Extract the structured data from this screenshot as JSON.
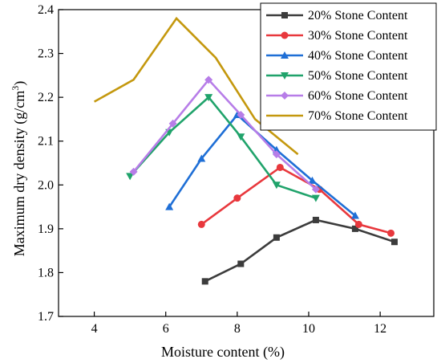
{
  "chart_data": {
    "type": "line",
    "xlabel": "Moisture content (%)",
    "ylabel_main": "Maximum dry density (g/cm",
    "ylabel_sup": "3",
    "ylabel_close": ")",
    "xlim": [
      3,
      13.5
    ],
    "ylim": [
      1.7,
      2.4
    ],
    "xticks": [
      4,
      6,
      8,
      10,
      12
    ],
    "yticks": [
      1.7,
      1.8,
      1.9,
      2.0,
      2.1,
      2.2,
      2.3,
      2.4
    ],
    "ytick_labels": [
      "1.7",
      "1.8",
      "1.9",
      "2.0",
      "2.1",
      "2.2",
      "2.3",
      "2.4"
    ],
    "grid": false,
    "legend_position": "top-right",
    "series": [
      {
        "name": "20% Stone Content",
        "color": "#3c3c3c",
        "marker": "square",
        "points": [
          [
            7.1,
            1.78
          ],
          [
            8.1,
            1.82
          ],
          [
            9.1,
            1.88
          ],
          [
            10.2,
            1.92
          ],
          [
            11.3,
            1.9
          ],
          [
            12.4,
            1.87
          ]
        ]
      },
      {
        "name": "30% Stone Content",
        "color": "#e8383d",
        "marker": "circle",
        "points": [
          [
            7.0,
            1.91
          ],
          [
            8.0,
            1.97
          ],
          [
            9.2,
            2.04
          ],
          [
            10.3,
            1.99
          ],
          [
            11.4,
            1.91
          ],
          [
            12.3,
            1.89
          ]
        ]
      },
      {
        "name": "40% Stone Content",
        "color": "#1f6fd6",
        "marker": "triangle-up",
        "points": [
          [
            6.1,
            1.95
          ],
          [
            7.0,
            2.06
          ],
          [
            8.0,
            2.16
          ],
          [
            9.1,
            2.08
          ],
          [
            10.1,
            2.01
          ],
          [
            11.3,
            1.93
          ]
        ]
      },
      {
        "name": "50% Stone Content",
        "color": "#20a36b",
        "marker": "triangle-down",
        "points": [
          [
            5.0,
            2.02
          ],
          [
            6.1,
            2.12
          ],
          [
            7.2,
            2.2
          ],
          [
            8.1,
            2.11
          ],
          [
            9.1,
            2.0
          ],
          [
            10.2,
            1.97
          ]
        ]
      },
      {
        "name": "60% Stone Content",
        "color": "#b77de8",
        "marker": "diamond",
        "points": [
          [
            5.1,
            2.03
          ],
          [
            6.2,
            2.14
          ],
          [
            7.2,
            2.24
          ],
          [
            8.1,
            2.16
          ],
          [
            9.1,
            2.07
          ],
          [
            10.2,
            1.99
          ]
        ]
      },
      {
        "name": "70% Stone Content",
        "color": "#c4980e",
        "marker": "none",
        "points": [
          [
            4.0,
            2.19
          ],
          [
            5.1,
            2.24
          ],
          [
            6.3,
            2.38
          ],
          [
            7.4,
            2.29
          ],
          [
            8.5,
            2.15
          ],
          [
            9.7,
            2.07
          ]
        ]
      }
    ]
  }
}
